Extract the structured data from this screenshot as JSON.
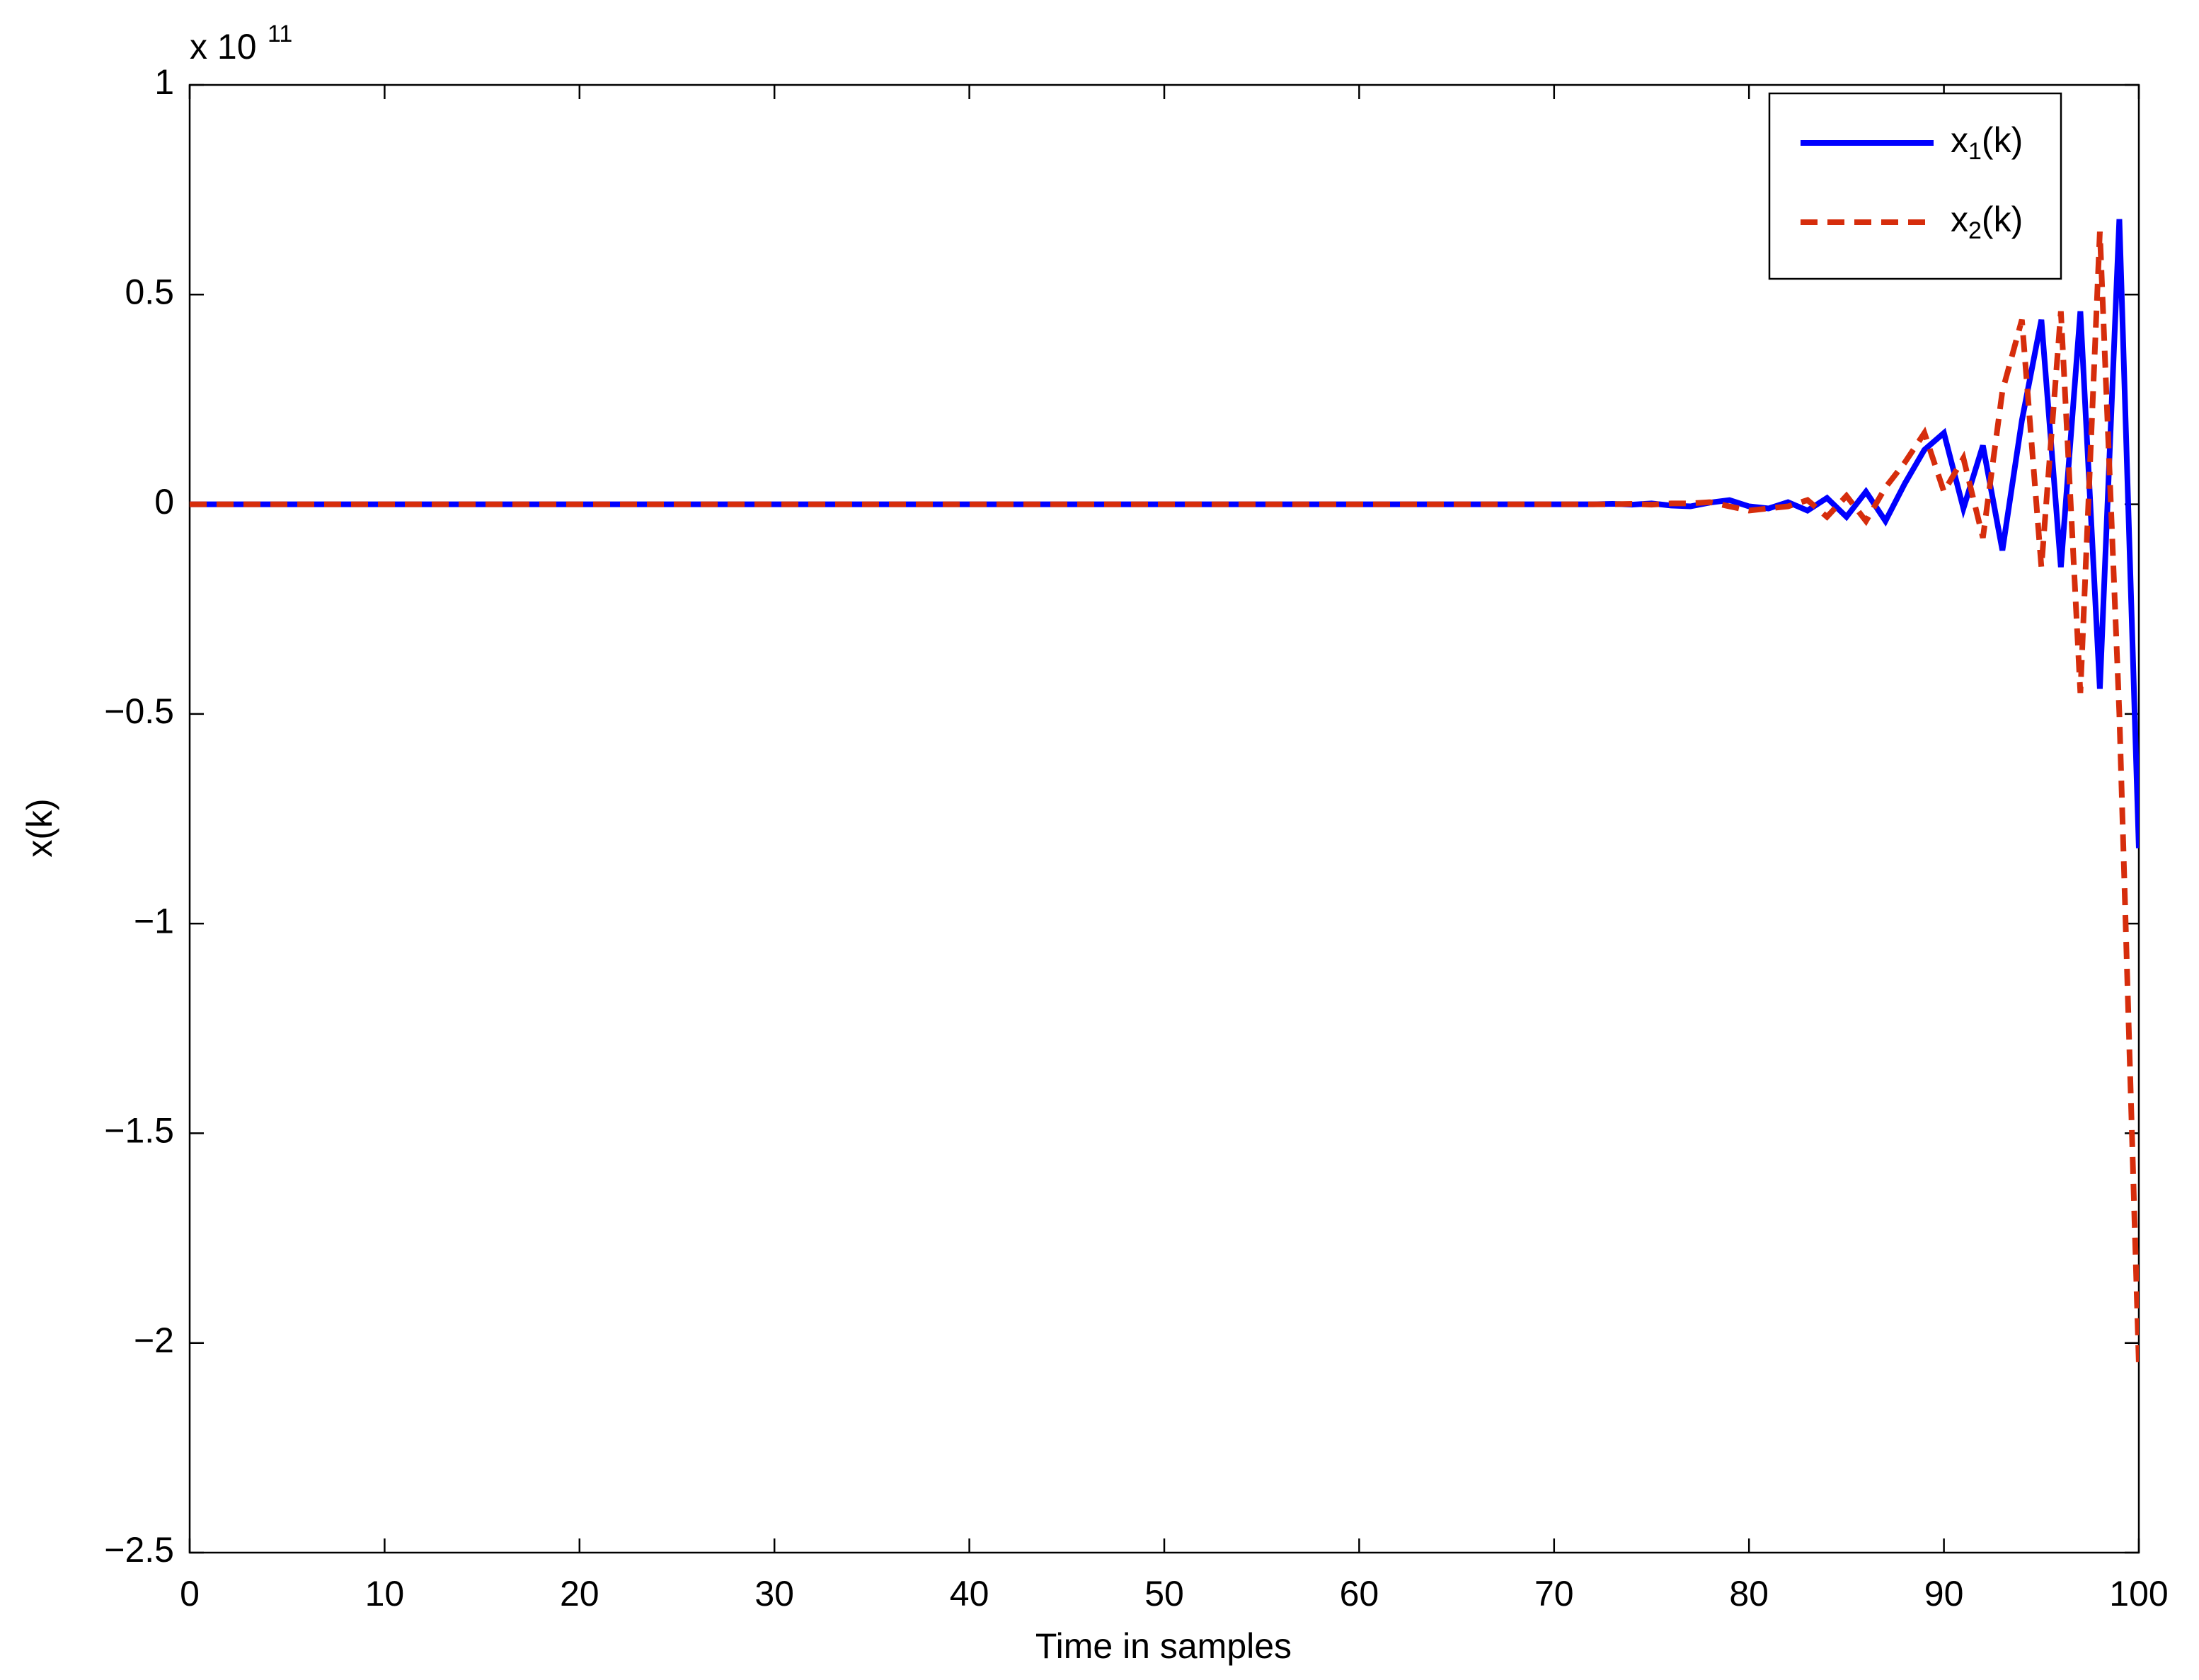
{
  "chart_data": {
    "type": "line",
    "x_label": "Time in samples",
    "y_label": "x(k)",
    "y_exponent": {
      "base": "x 10",
      "power": "11"
    },
    "x": [
      0,
      1,
      2,
      3,
      4,
      5,
      6,
      7,
      8,
      9,
      10,
      11,
      12,
      13,
      14,
      15,
      16,
      17,
      18,
      19,
      20,
      21,
      22,
      23,
      24,
      25,
      26,
      27,
      28,
      29,
      30,
      31,
      32,
      33,
      34,
      35,
      36,
      37,
      38,
      39,
      40,
      41,
      42,
      43,
      44,
      45,
      46,
      47,
      48,
      49,
      50,
      51,
      52,
      53,
      54,
      55,
      56,
      57,
      58,
      59,
      60,
      61,
      62,
      63,
      64,
      65,
      66,
      67,
      68,
      69,
      70,
      71,
      72,
      73,
      74,
      75,
      76,
      77,
      78,
      79,
      80,
      81,
      82,
      83,
      84,
      85,
      86,
      87,
      88,
      89,
      90,
      91,
      92,
      93,
      94,
      95,
      96,
      97,
      98,
      99,
      100
    ],
    "series": [
      {
        "name": "x1(k)",
        "color": "#0000ff",
        "dash": "solid",
        "values": [
          0,
          0,
          0,
          0,
          0,
          0,
          0,
          0,
          0,
          0,
          0,
          0,
          0,
          0,
          0,
          0,
          0,
          0,
          0,
          0,
          0,
          0,
          0,
          0,
          0,
          0,
          0,
          0,
          0,
          0,
          0,
          0,
          0,
          0,
          0,
          0,
          0,
          0,
          0,
          0,
          0,
          0,
          0,
          0,
          0,
          0,
          0,
          0,
          0,
          0,
          0,
          0,
          0,
          0,
          0,
          0,
          0,
          0,
          0,
          0,
          0,
          0,
          0,
          0,
          0,
          0,
          0,
          0,
          0,
          0,
          0,
          0,
          0,
          0.001,
          -0.001,
          0.002,
          -0.003,
          -0.005,
          0.004,
          0.01,
          -0.005,
          -0.01,
          0.005,
          -0.015,
          0.015,
          -0.03,
          0.03,
          -0.04,
          0.05,
          0.13,
          0.17,
          -0.01,
          0.14,
          -0.11,
          0.2,
          0.44,
          -0.15,
          0.46,
          -0.44,
          0.68,
          -0.82
        ]
      },
      {
        "name": "x2(k)",
        "color": "#d62d0c",
        "dash": "dashed",
        "values": [
          0,
          0,
          0,
          0,
          0,
          0,
          0,
          0,
          0,
          0,
          0,
          0,
          0,
          0,
          0,
          0,
          0,
          0,
          0,
          0,
          0,
          0,
          0,
          0,
          0,
          0,
          0,
          0,
          0,
          0,
          0,
          0,
          0,
          0,
          0,
          0,
          0,
          0,
          0,
          0,
          0,
          0,
          0,
          0,
          0,
          0,
          0,
          0,
          0,
          0,
          0,
          0,
          0,
          0,
          0,
          0,
          0,
          0,
          0,
          0,
          0,
          0,
          0,
          0,
          0,
          0,
          0,
          0,
          0,
          0,
          0,
          0,
          0,
          0,
          0.001,
          -0.001,
          0.002,
          0.002,
          0.005,
          -0.005,
          -0.015,
          -0.01,
          -0.005,
          0.01,
          -0.03,
          0.02,
          -0.04,
          0.04,
          0.1,
          0.17,
          0.03,
          0.11,
          -0.08,
          0.27,
          0.44,
          -0.15,
          0.46,
          -0.45,
          0.65,
          -0.5,
          -2.05
        ]
      }
    ],
    "xlim": [
      0,
      100
    ],
    "xticks": [
      0,
      10,
      20,
      30,
      40,
      50,
      60,
      70,
      80,
      90,
      100
    ],
    "ylim": [
      -2.5,
      1
    ],
    "yticks": [
      {
        "value": -2.5,
        "label": "−2.5"
      },
      {
        "value": -2,
        "label": "−2"
      },
      {
        "value": -1.5,
        "label": "−1.5"
      },
      {
        "value": -1,
        "label": "−1"
      },
      {
        "value": -0.5,
        "label": "−0.5"
      },
      0,
      0.5,
      1
    ],
    "legend": "top-right",
    "grid": false
  }
}
